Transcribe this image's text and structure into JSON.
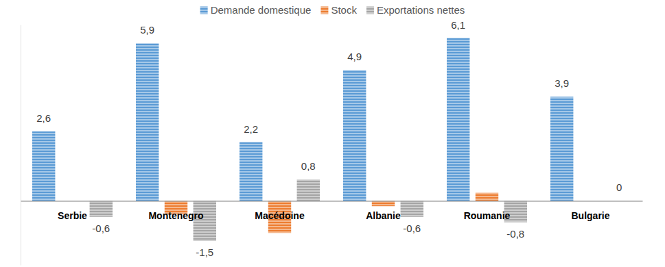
{
  "chart_data": {
    "type": "bar",
    "categories": [
      "Serbie",
      "Montenegro",
      "Macédoine",
      "Albanie",
      "Roumanie",
      "Bulgarie"
    ],
    "series": [
      {
        "name": "Demande domestique",
        "color": "#5b9bd5",
        "values": [
          2.6,
          5.9,
          2.2,
          4.9,
          6.1,
          3.9
        ],
        "value_labels": [
          "2,6",
          "5,9",
          "2,2",
          "4,9",
          "6,1",
          "3,9"
        ],
        "data_labels": true
      },
      {
        "name": "Stock",
        "color": "#ed7d31",
        "values": [
          0,
          -0.5,
          -1.2,
          -0.2,
          0.3,
          0
        ],
        "data_labels": false
      },
      {
        "name": "Exportations nettes",
        "color": "#a5a5a5",
        "values": [
          -0.6,
          -1.5,
          0.8,
          -0.6,
          -0.8,
          0
        ],
        "value_labels": [
          "-0,6",
          "-1,5",
          "0,8",
          "-0,6",
          "-0,8",
          "0"
        ],
        "data_labels": true
      }
    ],
    "ylim": [
      -2.4,
      6.6
    ],
    "yticks": [],
    "tick_labels": "x",
    "grid": false,
    "legend": "top"
  }
}
